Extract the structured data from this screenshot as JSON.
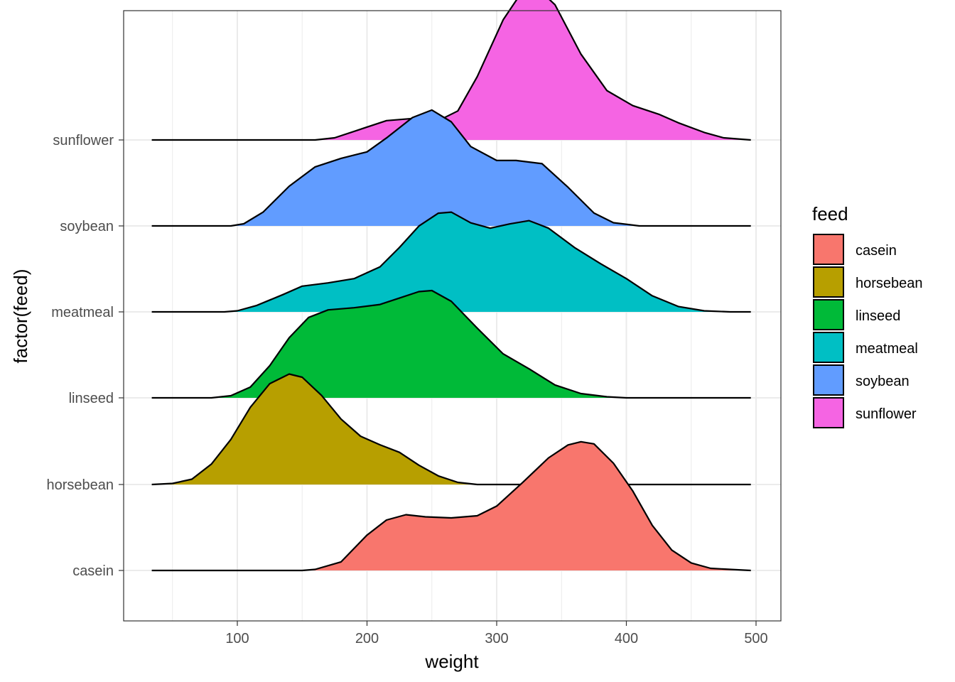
{
  "chart_data": {
    "type": "area",
    "subtype": "ridgeline-density",
    "title": "",
    "xlabel": "weight",
    "ylabel": "factor(feed)",
    "xlim": [
      12,
      518
    ],
    "x_ticks": [
      100,
      200,
      300,
      400,
      500
    ],
    "categories": [
      "casein",
      "horsebean",
      "linseed",
      "meatmeal",
      "soybean",
      "sunflower"
    ],
    "grid": true,
    "legend": {
      "title": "feed",
      "position": "right"
    },
    "series": [
      {
        "name": "casein",
        "color": "#F8766D",
        "density": [
          [
            34,
            0
          ],
          [
            150,
            0
          ],
          [
            160,
            0.01
          ],
          [
            180,
            0.08
          ],
          [
            200,
            0.33
          ],
          [
            215,
            0.47
          ],
          [
            230,
            0.52
          ],
          [
            245,
            0.5
          ],
          [
            265,
            0.49
          ],
          [
            285,
            0.51
          ],
          [
            300,
            0.6
          ],
          [
            320,
            0.82
          ],
          [
            340,
            1.05
          ],
          [
            355,
            1.17
          ],
          [
            365,
            1.2
          ],
          [
            375,
            1.18
          ],
          [
            390,
            1.0
          ],
          [
            405,
            0.74
          ],
          [
            420,
            0.42
          ],
          [
            435,
            0.19
          ],
          [
            450,
            0.07
          ],
          [
            465,
            0.02
          ],
          [
            480,
            0.01
          ],
          [
            496,
            0
          ]
        ]
      },
      {
        "name": "horsebean",
        "color": "#B79F00",
        "density": [
          [
            34,
            0
          ],
          [
            50,
            0.01
          ],
          [
            65,
            0.05
          ],
          [
            80,
            0.19
          ],
          [
            95,
            0.42
          ],
          [
            110,
            0.72
          ],
          [
            125,
            0.94
          ],
          [
            140,
            1.03
          ],
          [
            150,
            1.0
          ],
          [
            165,
            0.83
          ],
          [
            180,
            0.61
          ],
          [
            195,
            0.45
          ],
          [
            210,
            0.37
          ],
          [
            225,
            0.3
          ],
          [
            240,
            0.18
          ],
          [
            255,
            0.08
          ],
          [
            270,
            0.02
          ],
          [
            285,
            0
          ],
          [
            496,
            0
          ]
        ]
      },
      {
        "name": "linseed",
        "color": "#00BA38",
        "density": [
          [
            34,
            0
          ],
          [
            80,
            0
          ],
          [
            95,
            0.02
          ],
          [
            110,
            0.1
          ],
          [
            125,
            0.3
          ],
          [
            140,
            0.56
          ],
          [
            155,
            0.75
          ],
          [
            170,
            0.82
          ],
          [
            190,
            0.84
          ],
          [
            210,
            0.87
          ],
          [
            225,
            0.93
          ],
          [
            240,
            0.99
          ],
          [
            250,
            1.0
          ],
          [
            265,
            0.9
          ],
          [
            285,
            0.65
          ],
          [
            305,
            0.41
          ],
          [
            325,
            0.27
          ],
          [
            345,
            0.12
          ],
          [
            365,
            0.04
          ],
          [
            385,
            0.01
          ],
          [
            400,
            0
          ],
          [
            496,
            0
          ]
        ]
      },
      {
        "name": "meatmeal",
        "color": "#00BFC4",
        "density": [
          [
            34,
            0
          ],
          [
            90,
            0
          ],
          [
            100,
            0.01
          ],
          [
            115,
            0.06
          ],
          [
            135,
            0.16
          ],
          [
            150,
            0.24
          ],
          [
            170,
            0.27
          ],
          [
            190,
            0.31
          ],
          [
            210,
            0.42
          ],
          [
            225,
            0.6
          ],
          [
            240,
            0.8
          ],
          [
            255,
            0.92
          ],
          [
            265,
            0.93
          ],
          [
            280,
            0.83
          ],
          [
            295,
            0.78
          ],
          [
            310,
            0.82
          ],
          [
            325,
            0.85
          ],
          [
            340,
            0.78
          ],
          [
            360,
            0.6
          ],
          [
            380,
            0.45
          ],
          [
            400,
            0.31
          ],
          [
            420,
            0.15
          ],
          [
            440,
            0.05
          ],
          [
            460,
            0.01
          ],
          [
            480,
            0
          ],
          [
            496,
            0
          ]
        ]
      },
      {
        "name": "soybean",
        "color": "#619CFF",
        "density": [
          [
            34,
            0
          ],
          [
            95,
            0
          ],
          [
            105,
            0.02
          ],
          [
            120,
            0.13
          ],
          [
            140,
            0.37
          ],
          [
            160,
            0.55
          ],
          [
            180,
            0.63
          ],
          [
            200,
            0.69
          ],
          [
            215,
            0.82
          ],
          [
            235,
            1.01
          ],
          [
            250,
            1.08
          ],
          [
            265,
            0.97
          ],
          [
            280,
            0.74
          ],
          [
            300,
            0.61
          ],
          [
            315,
            0.61
          ],
          [
            335,
            0.58
          ],
          [
            355,
            0.36
          ],
          [
            375,
            0.12
          ],
          [
            390,
            0.03
          ],
          [
            410,
            0
          ],
          [
            496,
            0
          ]
        ]
      },
      {
        "name": "sunflower",
        "color": "#F564E3",
        "density": [
          [
            34,
            0
          ],
          [
            160,
            0
          ],
          [
            175,
            0.02
          ],
          [
            195,
            0.1
          ],
          [
            215,
            0.18
          ],
          [
            235,
            0.2
          ],
          [
            255,
            0.18
          ],
          [
            270,
            0.27
          ],
          [
            285,
            0.59
          ],
          [
            305,
            1.12
          ],
          [
            320,
            1.39
          ],
          [
            330,
            1.43
          ],
          [
            345,
            1.26
          ],
          [
            365,
            0.8
          ],
          [
            385,
            0.46
          ],
          [
            405,
            0.32
          ],
          [
            425,
            0.24
          ],
          [
            440,
            0.16
          ],
          [
            460,
            0.07
          ],
          [
            475,
            0.02
          ],
          [
            496,
            0
          ]
        ]
      }
    ]
  }
}
